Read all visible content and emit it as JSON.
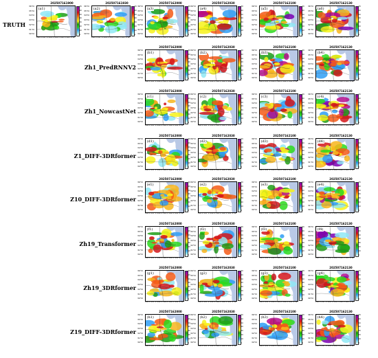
{
  "row_labels": {
    "a": "TRUTH",
    "b": "Zh1_PredRNNV2",
    "c": "Zh1_NowcastNet",
    "d": "Z1_DIFF-3DRformer",
    "e": "Z10_DIFF-3DRformer",
    "f": "Zh19_Transformer",
    "g": "Zh19_3DRformer",
    "h": "Z19_DIFF-3DRformer"
  },
  "truth_times": [
    "202507162000",
    "202507162030",
    "202507162100",
    "202507162130"
  ],
  "truth_pre_times": [
    "202507161900",
    "202507161930"
  ],
  "lat_ticks": [
    "36°N",
    "35°N",
    "34°N",
    "33°N",
    "32°N",
    "31°N",
    "30°N"
  ],
  "lon_ticks": "116°E 117°E 118°E 119°E 120°E 121°E 122°E",
  "colorbar_ticks": [
    "70",
    "60",
    "50",
    "40",
    "30",
    "20",
    "10",
    "0"
  ],
  "colorbar_colors": [
    "#ffffff",
    "#8fe8f5",
    "#2f9df4",
    "#2bd91d",
    "#1f9e16",
    "#f7f21a",
    "#f7b51c",
    "#f45a16",
    "#d3161b",
    "#b40d8e",
    "#7a00b3"
  ],
  "land_color": "#ffffff",
  "sea_color": "#b9c9e6",
  "panels": {
    "a": [
      "(a1)",
      "(a2)",
      "(a3)",
      "(a4)",
      "(a5)",
      "(a6)"
    ],
    "b": [
      "(b1)",
      "(b2)",
      "(b3)",
      "(b4)"
    ],
    "c": [
      "(c1)",
      "(c2)",
      "(c3)",
      "(c4)"
    ],
    "d": [
      "(d1)",
      "(d2)",
      "(d3)",
      "(d4)"
    ],
    "e": [
      "(e1)",
      "(e2)",
      "(e3)",
      "(e4)"
    ],
    "f": [
      "(f1)",
      "(f2)",
      "(f3)",
      "(f4)"
    ],
    "g": [
      "(g1)",
      "(g2)",
      "(g3)",
      "(g4)"
    ],
    "h": [
      "(h1)",
      "(h2)",
      "(h3)",
      "(h4)"
    ]
  }
}
